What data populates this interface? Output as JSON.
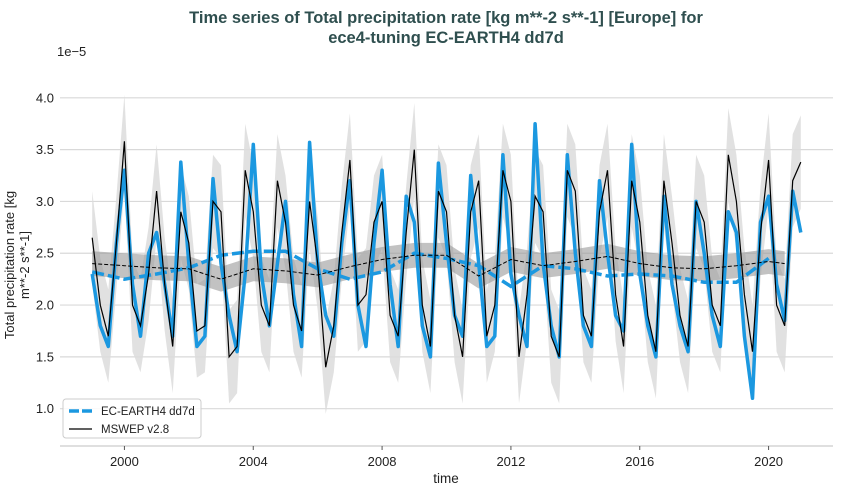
{
  "chart_data": {
    "type": "line",
    "title_line1": "Time series of Total precipitation rate [kg m**-2 s**-1] [Europe] for",
    "title_line2": "ece4-tuning EC-EARTH4 dd7d",
    "xlabel": "time",
    "ylabel_line1": "Total precipitation rate [kg",
    "ylabel_line2": "m**-2 s**-1]",
    "y_offset_label": "1e−5",
    "xlim": [
      1998.0,
      2022.0
    ],
    "ylim": [
      0.64,
      4.22
    ],
    "x_ticks": [
      2000,
      2004,
      2008,
      2012,
      2016,
      2020
    ],
    "x_tick_labels": [
      "2000",
      "2004",
      "2008",
      "2012",
      "2016",
      "2020"
    ],
    "y_ticks": [
      1.0,
      1.5,
      2.0,
      2.5,
      3.0,
      3.5,
      4.0
    ],
    "y_tick_labels": [
      "1.0",
      "1.5",
      "2.0",
      "2.5",
      "3.0",
      "3.5",
      "4.0"
    ],
    "grid": "horizontal",
    "legend_position": "bottom-left",
    "colors": {
      "ece": "#1b98e0",
      "mswep": "#000000",
      "mswep_spread": "#dcdcdc",
      "mean_band": "#9a9a9a",
      "title": "#2f4f4f"
    },
    "series": [
      {
        "name": "EC-EARTH4 dd7d",
        "start_year": 1999.0,
        "values_per_year": 4,
        "values": [
          2.3,
          1.8,
          1.6,
          2.6,
          3.3,
          2.2,
          1.7,
          2.5,
          2.7,
          2.2,
          1.7,
          3.38,
          2.4,
          1.6,
          1.7,
          3.22,
          2.4,
          1.9,
          1.55,
          2.3,
          3.55,
          2.3,
          1.8,
          2.4,
          3.0,
          2.1,
          1.6,
          3.57,
          2.4,
          1.9,
          1.7,
          2.6,
          3.2,
          2.0,
          1.6,
          2.6,
          3.3,
          2.2,
          1.6,
          3.05,
          2.8,
          1.8,
          1.5,
          3.37,
          2.6,
          1.9,
          1.7,
          3.25,
          2.4,
          1.6,
          1.7,
          3.45,
          2.3,
          1.9,
          1.6,
          3.75,
          2.4,
          1.8,
          1.5,
          3.45,
          2.5,
          1.8,
          1.6,
          3.2,
          2.5,
          1.9,
          1.75,
          3.55,
          2.3,
          1.8,
          1.5,
          3.05,
          2.2,
          1.8,
          1.55,
          3.0,
          2.5,
          1.9,
          1.6,
          2.9,
          2.7,
          1.7,
          1.1,
          2.8,
          3.05,
          2.2,
          1.85,
          3.1,
          2.7
        ],
        "running_mean_years": [
          1999,
          2000,
          2001,
          2002,
          2003,
          2004,
          2005,
          2006,
          2007,
          2008,
          2009,
          2010,
          2011,
          2012,
          2013,
          2014,
          2015,
          2016,
          2017,
          2018,
          2019,
          2020
        ],
        "running_mean": [
          2.32,
          2.25,
          2.3,
          2.36,
          2.48,
          2.52,
          2.52,
          2.35,
          2.25,
          2.32,
          2.5,
          2.45,
          2.38,
          2.18,
          2.38,
          2.35,
          2.28,
          2.3,
          2.28,
          2.22,
          2.22,
          2.45
        ]
      },
      {
        "name": "MSWEP v2.8",
        "start_year": 1999.0,
        "values_per_year": 4,
        "values": [
          2.65,
          2.0,
          1.7,
          2.6,
          3.58,
          2.0,
          1.8,
          2.3,
          3.1,
          2.2,
          1.6,
          2.9,
          2.6,
          1.75,
          1.8,
          3.0,
          2.9,
          1.5,
          1.6,
          3.3,
          2.9,
          2.0,
          1.8,
          3.2,
          2.8,
          2.0,
          1.75,
          3.0,
          2.4,
          1.4,
          1.8,
          2.7,
          3.4,
          2.0,
          2.1,
          2.8,
          3.0,
          1.9,
          1.7,
          2.7,
          3.5,
          2.0,
          1.6,
          3.1,
          2.9,
          1.9,
          1.5,
          2.9,
          3.2,
          1.7,
          2.0,
          3.3,
          3.0,
          1.5,
          2.1,
          3.05,
          2.9,
          1.7,
          1.5,
          3.3,
          3.1,
          1.9,
          1.7,
          2.9,
          3.3,
          2.1,
          1.6,
          3.2,
          2.8,
          1.9,
          1.55,
          3.2,
          2.6,
          1.9,
          1.6,
          3.0,
          2.8,
          2.0,
          1.8,
          3.45,
          3.0,
          2.1,
          1.55,
          2.7,
          3.4,
          2.0,
          1.8,
          3.2,
          3.38
        ],
        "spread_halfwidth": 0.45,
        "running_mean_years": [
          1999,
          2000,
          2001,
          2002,
          2003,
          2004,
          2005,
          2006,
          2007,
          2008,
          2009,
          2010,
          2011,
          2012,
          2013,
          2014,
          2015,
          2016,
          2017,
          2018,
          2019,
          2020,
          2020.5
        ],
        "running_mean": [
          2.4,
          2.38,
          2.36,
          2.35,
          2.25,
          2.35,
          2.33,
          2.29,
          2.37,
          2.44,
          2.48,
          2.48,
          2.28,
          2.44,
          2.38,
          2.42,
          2.47,
          2.4,
          2.36,
          2.35,
          2.38,
          2.42,
          2.4
        ],
        "running_mean_band_halfwidth": 0.12
      }
    ]
  }
}
